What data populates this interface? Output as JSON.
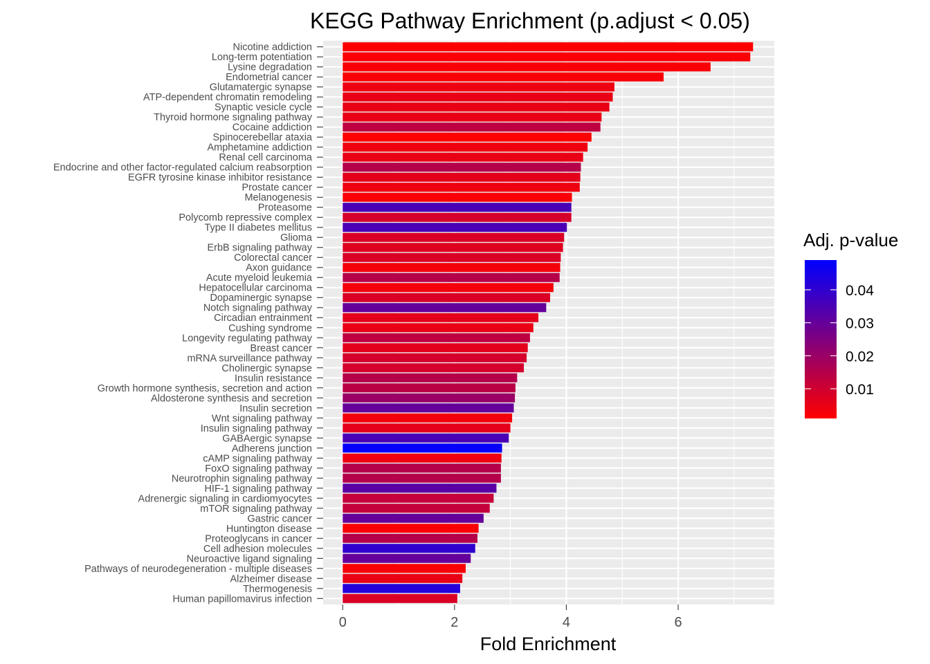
{
  "chart_data": {
    "type": "bar",
    "orientation": "horizontal",
    "title": "KEGG Pathway Enrichment (p.adjust < 0.05)",
    "xlabel": "Fold Enrichment",
    "ylabel": "",
    "xlim": [
      -0.35,
      7.72
    ],
    "xticks": [
      0,
      2,
      4,
      6
    ],
    "grid": true,
    "categories": [
      "Nicotine addiction",
      "Long-term potentiation",
      "Lysine degradation",
      "Endometrial cancer",
      "Glutamatergic synapse",
      "ATP-dependent chromatin remodeling",
      "Synaptic vesicle cycle",
      "Thyroid hormone signaling pathway",
      "Cocaine addiction",
      "Spinocerebellar ataxia",
      "Amphetamine addiction",
      "Renal cell carcinoma",
      "Endocrine and other factor-regulated calcium reabsorption",
      "EGFR tyrosine kinase inhibitor resistance",
      "Prostate cancer",
      "Melanogenesis",
      "Proteasome",
      "Polycomb repressive complex",
      "Type II diabetes mellitus",
      "Glioma",
      "ErbB signaling pathway",
      "Colorectal cancer",
      "Axon guidance",
      "Acute myeloid leukemia",
      "Hepatocellular carcinoma",
      "Dopaminergic synapse",
      "Notch signaling pathway",
      "Circadian entrainment",
      "Cushing syndrome",
      "Longevity regulating pathway",
      "Breast cancer",
      "mRNA surveillance pathway",
      "Cholinergic synapse",
      "Insulin resistance",
      "Growth hormone synthesis, secretion and action",
      "Aldosterone synthesis and secretion",
      "Insulin secretion",
      "Wnt signaling pathway",
      "Insulin signaling pathway",
      "GABAergic synapse",
      "Adherens junction",
      "cAMP signaling pathway",
      "FoxO signaling pathway",
      "Neurotrophin signaling pathway",
      "HIF-1 signaling pathway",
      "Adrenergic signaling in cardiomyocytes",
      "mTOR signaling pathway",
      "Gastric cancer",
      "Huntington disease",
      "Proteoglycans in cancer",
      "Cell adhesion molecules",
      "Neuroactive ligand signaling",
      "Pathways of neurodegeneration - multiple diseases",
      "Alzheimer disease",
      "Thermogenesis",
      "Human papillomavirus infection"
    ],
    "values": [
      7.34,
      7.29,
      6.58,
      5.74,
      4.86,
      4.83,
      4.77,
      4.63,
      4.61,
      4.45,
      4.38,
      4.3,
      4.26,
      4.25,
      4.24,
      4.1,
      4.09,
      4.09,
      4.01,
      3.96,
      3.94,
      3.9,
      3.89,
      3.88,
      3.77,
      3.71,
      3.64,
      3.5,
      3.41,
      3.35,
      3.31,
      3.29,
      3.24,
      3.12,
      3.09,
      3.08,
      3.06,
      3.03,
      3.0,
      2.97,
      2.85,
      2.84,
      2.83,
      2.83,
      2.75,
      2.7,
      2.63,
      2.52,
      2.43,
      2.41,
      2.37,
      2.29,
      2.2,
      2.14,
      2.1,
      2.05
    ],
    "p_adjust": [
      0.001,
      0.0018,
      0.002,
      0.0022,
      0.004,
      0.005,
      0.005,
      0.005,
      0.013,
      0.001,
      0.004,
      0.005,
      0.015,
      0.006,
      0.004,
      0.002,
      0.035,
      0.009,
      0.035,
      0.008,
      0.007,
      0.008,
      0.003,
      0.015,
      0.003,
      0.008,
      0.03,
      0.006,
      0.005,
      0.013,
      0.006,
      0.009,
      0.009,
      0.015,
      0.014,
      0.02,
      0.03,
      0.003,
      0.006,
      0.035,
      0.048,
      0.004,
      0.015,
      0.015,
      0.032,
      0.012,
      0.012,
      0.03,
      0.002,
      0.015,
      0.04,
      0.03,
      0.002,
      0.005,
      0.042,
      0.008
    ],
    "legend": {
      "title": "Adj. p-value",
      "position": "right",
      "range": [
        0.001,
        0.049
      ],
      "ticks": [
        0.01,
        0.02,
        0.03,
        0.04
      ],
      "tick_labels": [
        "0.01",
        "0.02",
        "0.03",
        "0.04"
      ],
      "low_color": "#FF0000",
      "high_color": "#0000FF"
    },
    "panel_background": "#EBEBEB",
    "grid_color": "#FFFFFF"
  }
}
